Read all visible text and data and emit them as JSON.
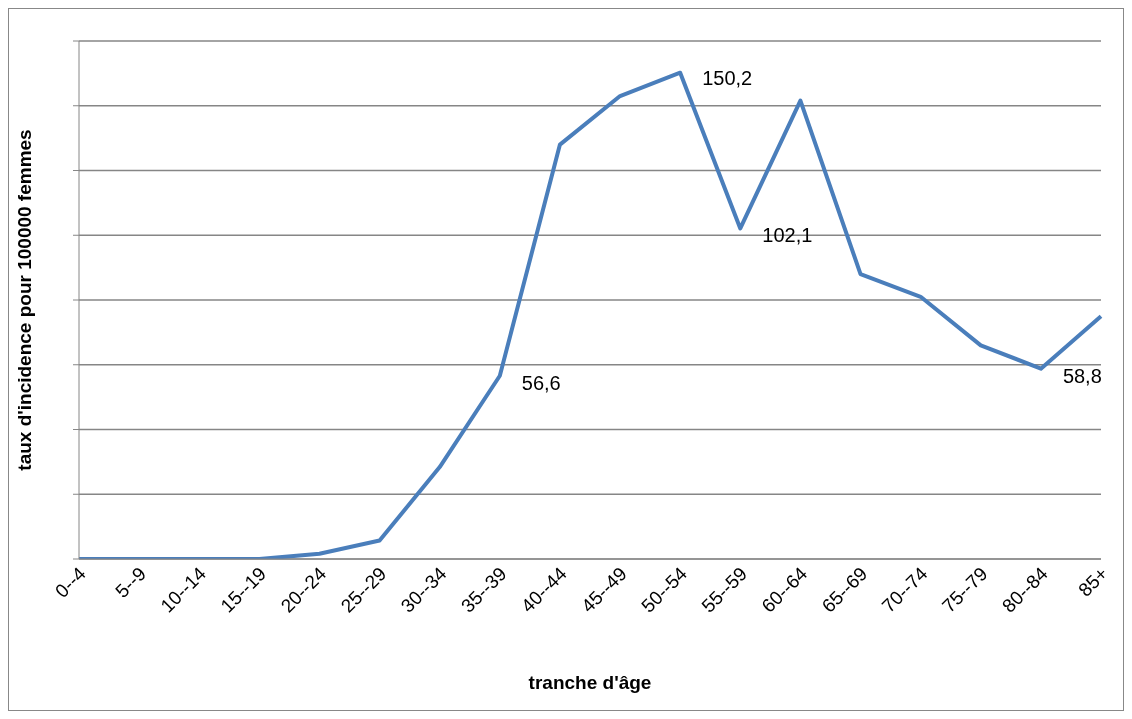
{
  "chart_data": {
    "type": "line",
    "xlabel": "tranche d'âge",
    "ylabel": "taux d'incidence  pour 100000 femmes",
    "categories": [
      "0--4",
      "5--9",
      "10--14",
      "15--19",
      "20--24",
      "25--29",
      "30--34",
      "35--39",
      "40--44",
      "45--49",
      "50--54",
      "55--59",
      "60--64",
      "65--69",
      "70--74",
      "75--79",
      "80--84",
      "85+"
    ],
    "series": [
      {
        "color": "#4a7ebb",
        "values": [
          0,
          0,
          0,
          0,
          1.6,
          5.7,
          28.4,
          56.6,
          128,
          143,
          150.2,
          102.1,
          141.6,
          88,
          81,
          66,
          58.8,
          75
        ],
        "value_labels": [
          null,
          null,
          null,
          null,
          null,
          null,
          null,
          "56,6",
          null,
          null,
          "150,2",
          "102,1",
          null,
          null,
          null,
          null,
          "58,8",
          null
        ]
      }
    ],
    "ylim": [
      0,
      160
    ],
    "yticks": [
      {
        "value": 0,
        "label": null
      },
      {
        "value": 20,
        "label": null
      },
      {
        "value": 40,
        "label": null
      },
      {
        "value": 60,
        "label": null
      },
      {
        "value": 80,
        "label": null
      },
      {
        "value": 100,
        "label": null
      },
      {
        "value": 120,
        "label": null
      },
      {
        "value": 140,
        "label": null
      },
      {
        "value": 160,
        "label": null
      }
    ],
    "grid": "y",
    "marker": "none",
    "line_style": "solid",
    "legend": false
  }
}
